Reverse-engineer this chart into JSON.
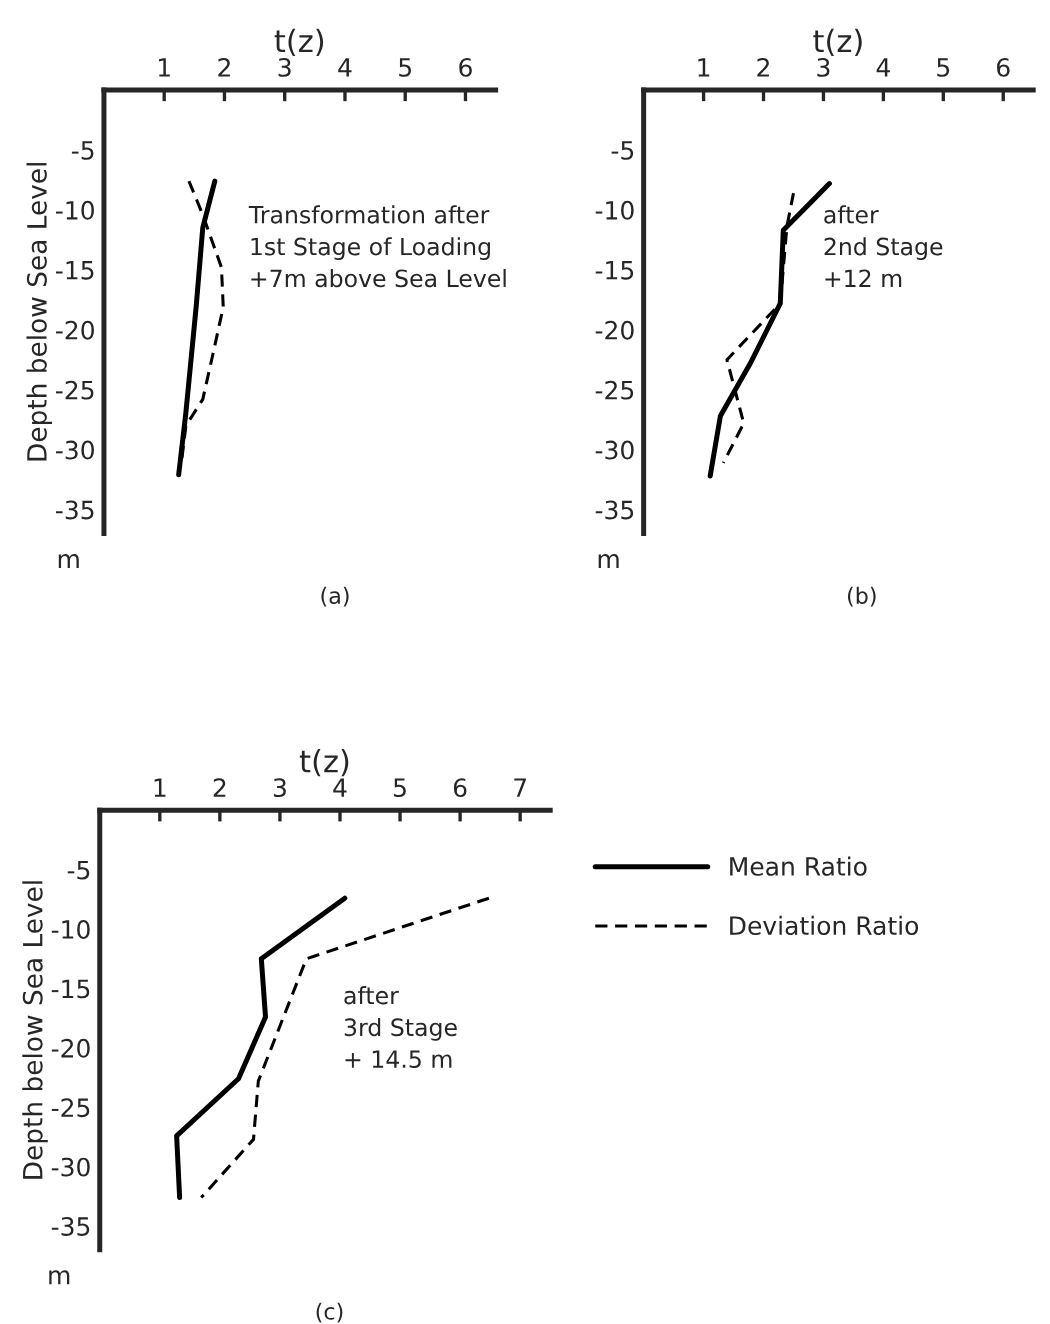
{
  "chart_data": [
    {
      "type": "line",
      "xlabel": "t(z)",
      "ylabel": "Depth below Sea Level",
      "xlim": [
        0,
        6.5
      ],
      "ylim": [
        -37,
        0
      ],
      "xticks": [
        1,
        2,
        3,
        4,
        5,
        6
      ],
      "yticks": [
        -5,
        -10,
        -15,
        -20,
        -25,
        -30,
        -35
      ],
      "grid": false,
      "legend": false,
      "series": [
        {
          "color": "#000000",
          "line_style": "solid",
          "x": [
            1.84,
            1.64,
            1.53,
            1.36,
            1.24
          ],
          "values": [
            -7.6,
            -11.5,
            -18.1,
            -26.9,
            -32.1
          ]
        },
        {
          "color": "#000000",
          "line_style": "dashed",
          "x": [
            1.41,
            1.64,
            1.95,
            1.98,
            1.81,
            1.64,
            1.36,
            1.28
          ],
          "values": [
            -7.6,
            -10.4,
            -14.8,
            -18.1,
            -22,
            -25.8,
            -28,
            -31.3
          ]
        }
      ],
      "annotations": [
        "Transformation after\n1st Stage of Loading\n+7m above Sea Level",
        "m",
        "(a)"
      ]
    },
    {
      "type": "line",
      "xlabel": "t(z)",
      "xlim": [
        0,
        6.5
      ],
      "ylim": [
        -37,
        0
      ],
      "xticks": [
        1,
        2,
        3,
        4,
        5,
        6
      ],
      "yticks": [
        -5,
        -10,
        -15,
        -20,
        -25,
        -30,
        -35
      ],
      "grid": false,
      "legend": false,
      "series": [
        {
          "color": "#000000",
          "line_style": "solid",
          "x": [
            3.1,
            2.33,
            2.28,
            1.78,
            1.28,
            1.11
          ],
          "values": [
            -7.8,
            -11.7,
            -17.8,
            -22.8,
            -27.2,
            -32.2
          ]
        },
        {
          "color": "#000000",
          "line_style": "dashed",
          "x": [
            2.5,
            2.39,
            2.28,
            1.39,
            1.67,
            1.33
          ],
          "values": [
            -8.6,
            -11.4,
            -17.8,
            -22.5,
            -27.8,
            -31.1
          ]
        }
      ],
      "annotations": [
        "after\n2nd Stage\n+12 m",
        "m",
        "(b)"
      ]
    },
    {
      "type": "line",
      "xlabel": "t(z)",
      "ylabel": "Depth below Sea Level",
      "xlim": [
        0,
        7.5
      ],
      "ylim": [
        -37,
        0
      ],
      "xticks": [
        1,
        2,
        3,
        4,
        5,
        6,
        7
      ],
      "yticks": [
        -5,
        -10,
        -15,
        -20,
        -25,
        -30,
        -35
      ],
      "grid": false,
      "legend": "right",
      "series": [
        {
          "name": "Mean Ratio",
          "color": "#000000",
          "line_style": "solid",
          "x": [
            4.08,
            2.69,
            2.76,
            2.31,
            1.28,
            1.33
          ],
          "values": [
            -7.4,
            -12.5,
            -17.4,
            -22.6,
            -27.4,
            -32.6
          ]
        },
        {
          "name": "Deviation Ratio",
          "color": "#000000",
          "line_style": "dashed",
          "x": [
            6.48,
            3.44,
            2.64,
            2.56,
            1.69
          ],
          "values": [
            -7.4,
            -12.5,
            -22.8,
            -27.7,
            -32.6
          ]
        }
      ],
      "annotations": [
        "after\n3rd Stage\n+ 14.5 m",
        "m",
        "(c)"
      ]
    }
  ]
}
